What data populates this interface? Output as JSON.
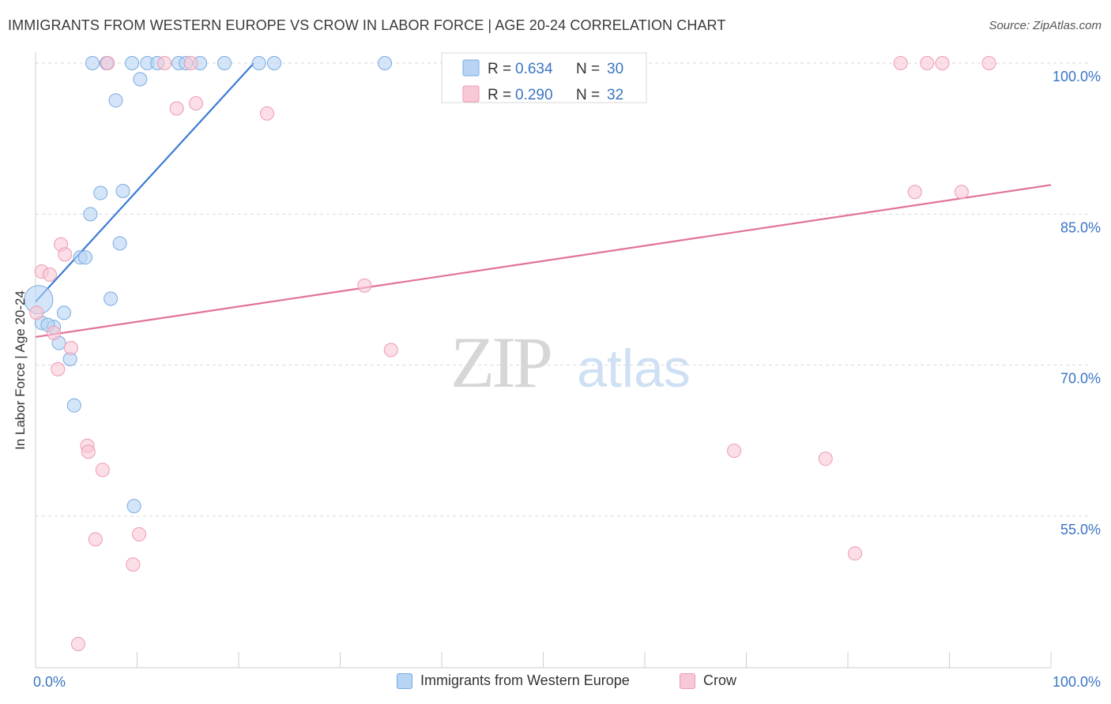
{
  "header": {
    "title": "IMMIGRANTS FROM WESTERN EUROPE VS CROW IN LABOR FORCE | AGE 20-24 CORRELATION CHART",
    "source": "Source: ZipAtlas.com"
  },
  "watermark": {
    "zip": "ZIP",
    "atlas": "atlas"
  },
  "colors": {
    "blue_fill": "#b8d4f5",
    "blue_stroke": "#7aaae0",
    "blue_line": "#3a7bd5",
    "pink_fill": "#f8c8d6",
    "pink_stroke": "#ee9ab3",
    "pink_line": "#e2719a",
    "tick_label": "#3a75c4",
    "grid": "#d9d9d9"
  },
  "chart_data": {
    "type": "scatter",
    "title": "IMMIGRANTS FROM WESTERN EUROPE VS CROW IN LABOR FORCE | AGE 20-24 CORRELATION CHART",
    "xlabel": "",
    "ylabel": "In Labor Force | Age 20-24",
    "xlim": [
      0,
      100
    ],
    "ylim": [
      41,
      102
    ],
    "x_tick_labels": [
      {
        "value": 0,
        "label": "0.0%"
      },
      {
        "value": 100,
        "label": "100.0%"
      }
    ],
    "y_tick_labels": [
      {
        "value": 55,
        "label": "55.0%"
      },
      {
        "value": 70,
        "label": "70.0%"
      },
      {
        "value": 85,
        "label": "85.0%"
      },
      {
        "value": 100,
        "label": "100.0%"
      }
    ],
    "legend_top": [
      {
        "series": "Immigrants from Western Europe",
        "r_label": "R =",
        "r_value": "0.634",
        "n_label": "N =",
        "n_value": "30"
      },
      {
        "series": "Crow",
        "r_label": "R =",
        "r_value": "0.290",
        "n_label": "N =",
        "n_value": "32"
      }
    ],
    "series": [
      {
        "name": "Immigrants from Western Europe",
        "color": "blue",
        "trendline": {
          "x": [
            0,
            21.5
          ],
          "y": [
            76.3,
            100.0
          ]
        },
        "points": [
          {
            "x": 0.3,
            "y": 76.5,
            "big": true
          },
          {
            "x": 0.6,
            "y": 74.2
          },
          {
            "x": 1.8,
            "y": 73.8
          },
          {
            "x": 1.2,
            "y": 74.0
          },
          {
            "x": 2.3,
            "y": 72.2
          },
          {
            "x": 2.8,
            "y": 75.2
          },
          {
            "x": 3.4,
            "y": 70.6
          },
          {
            "x": 3.8,
            "y": 66.0
          },
          {
            "x": 4.4,
            "y": 80.7
          },
          {
            "x": 4.9,
            "y": 80.7
          },
          {
            "x": 5.4,
            "y": 85.0
          },
          {
            "x": 6.4,
            "y": 87.1
          },
          {
            "x": 7.4,
            "y": 76.6
          },
          {
            "x": 7.9,
            "y": 96.3
          },
          {
            "x": 8.3,
            "y": 82.1
          },
          {
            "x": 8.6,
            "y": 87.3
          },
          {
            "x": 9.7,
            "y": 56.0
          },
          {
            "x": 10.3,
            "y": 98.4
          },
          {
            "x": 5.6,
            "y": 100.0
          },
          {
            "x": 7.0,
            "y": 100.0
          },
          {
            "x": 9.5,
            "y": 100.0
          },
          {
            "x": 11.0,
            "y": 100.0
          },
          {
            "x": 12.0,
            "y": 100.0
          },
          {
            "x": 14.1,
            "y": 100.0
          },
          {
            "x": 14.8,
            "y": 100.0
          },
          {
            "x": 16.2,
            "y": 100.0
          },
          {
            "x": 18.6,
            "y": 100.0
          },
          {
            "x": 22.0,
            "y": 100.0
          },
          {
            "x": 23.5,
            "y": 100.0
          },
          {
            "x": 34.4,
            "y": 100.0
          }
        ]
      },
      {
        "name": "Crow",
        "color": "pink",
        "trendline": {
          "x": [
            0,
            100
          ],
          "y": [
            72.8,
            87.9
          ]
        },
        "points": [
          {
            "x": 0.1,
            "y": 75.2
          },
          {
            "x": 0.6,
            "y": 79.3
          },
          {
            "x": 1.4,
            "y": 79.0
          },
          {
            "x": 1.8,
            "y": 73.2
          },
          {
            "x": 2.2,
            "y": 69.6
          },
          {
            "x": 2.5,
            "y": 82.0
          },
          {
            "x": 2.9,
            "y": 81.0
          },
          {
            "x": 3.5,
            "y": 71.7
          },
          {
            "x": 4.2,
            "y": 42.3
          },
          {
            "x": 5.1,
            "y": 62.0
          },
          {
            "x": 5.2,
            "y": 61.4
          },
          {
            "x": 5.9,
            "y": 52.7
          },
          {
            "x": 6.6,
            "y": 59.6
          },
          {
            "x": 7.1,
            "y": 100.0
          },
          {
            "x": 9.6,
            "y": 50.2
          },
          {
            "x": 10.2,
            "y": 53.2
          },
          {
            "x": 12.7,
            "y": 100.0
          },
          {
            "x": 13.9,
            "y": 95.5
          },
          {
            "x": 15.3,
            "y": 100.0
          },
          {
            "x": 15.8,
            "y": 96.0
          },
          {
            "x": 22.8,
            "y": 95.0
          },
          {
            "x": 32.4,
            "y": 77.9
          },
          {
            "x": 35.0,
            "y": 71.5
          },
          {
            "x": 68.8,
            "y": 61.5
          },
          {
            "x": 77.8,
            "y": 60.7
          },
          {
            "x": 80.7,
            "y": 51.3
          },
          {
            "x": 85.2,
            "y": 100.0
          },
          {
            "x": 86.6,
            "y": 87.2
          },
          {
            "x": 87.8,
            "y": 100.0
          },
          {
            "x": 89.3,
            "y": 100.0
          },
          {
            "x": 91.2,
            "y": 87.2
          },
          {
            "x": 93.9,
            "y": 100.0
          }
        ]
      }
    ]
  }
}
